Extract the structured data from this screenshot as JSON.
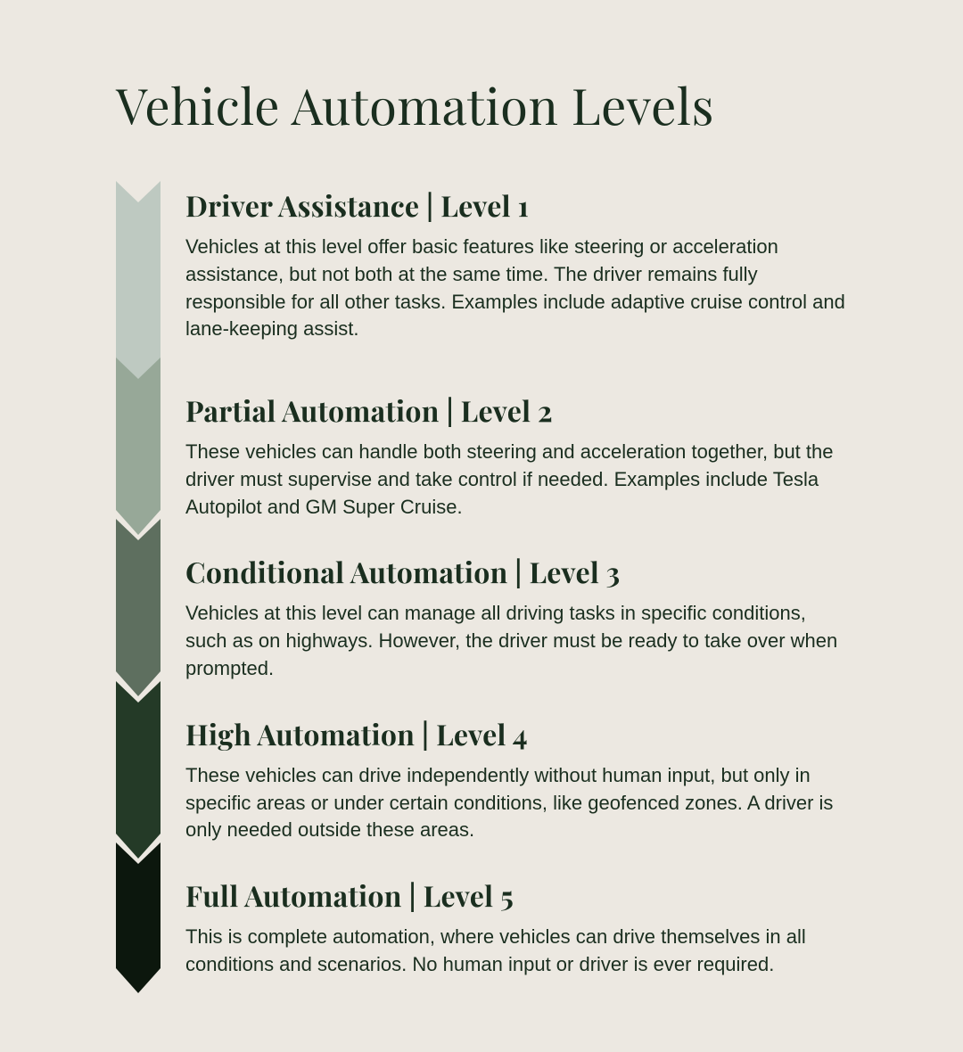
{
  "title": "Vehicle Automation Levels",
  "background_color": "#ece8e1",
  "title_color": "#1a2e1f",
  "heading_color": "#1a2e1f",
  "body_color": "#1a2e1f",
  "title_fontsize": 56,
  "heading_fontsize": 32,
  "body_fontsize": 22,
  "chevron_width": 50,
  "chevron_body_height": 140,
  "chevron_tip_height": 28,
  "chevron_notch_depth": 24,
  "levels": [
    {
      "heading": "Driver Assistance | Level 1",
      "body": "Vehicles at this level offer basic features like steering or acceleration assistance, but not both at the same time. The driver remains fully responsible for all other tasks. Examples include adaptive cruise control and lane-keeping assist.",
      "chevron_color": "#bec9c1"
    },
    {
      "heading": "Partial Automation | Level 2",
      "body": "These vehicles can handle both steering and acceleration together, but the driver must supervise and take control if needed. Examples include Tesla Autopilot and GM Super Cruise.",
      "chevron_color": "#97a898"
    },
    {
      "heading": "Conditional Automation | Level 3",
      "body": "Vehicles at this level can manage all driving tasks in specific conditions, such as on highways. However, the driver must be ready to take over when prompted.",
      "chevron_color": "#5e6f5f"
    },
    {
      "heading": "High Automation | Level 4",
      "body": "These vehicles can drive independently without human input, but only in specific areas or under certain conditions, like geofenced zones. A driver is only needed outside these areas.",
      "chevron_color": "#243a27"
    },
    {
      "heading": "Full Automation | Level 5",
      "body": "This is complete automation, where vehicles can drive themselves in all conditions and scenarios. No human input or driver is ever required.",
      "chevron_color": "#0c170d"
    }
  ]
}
